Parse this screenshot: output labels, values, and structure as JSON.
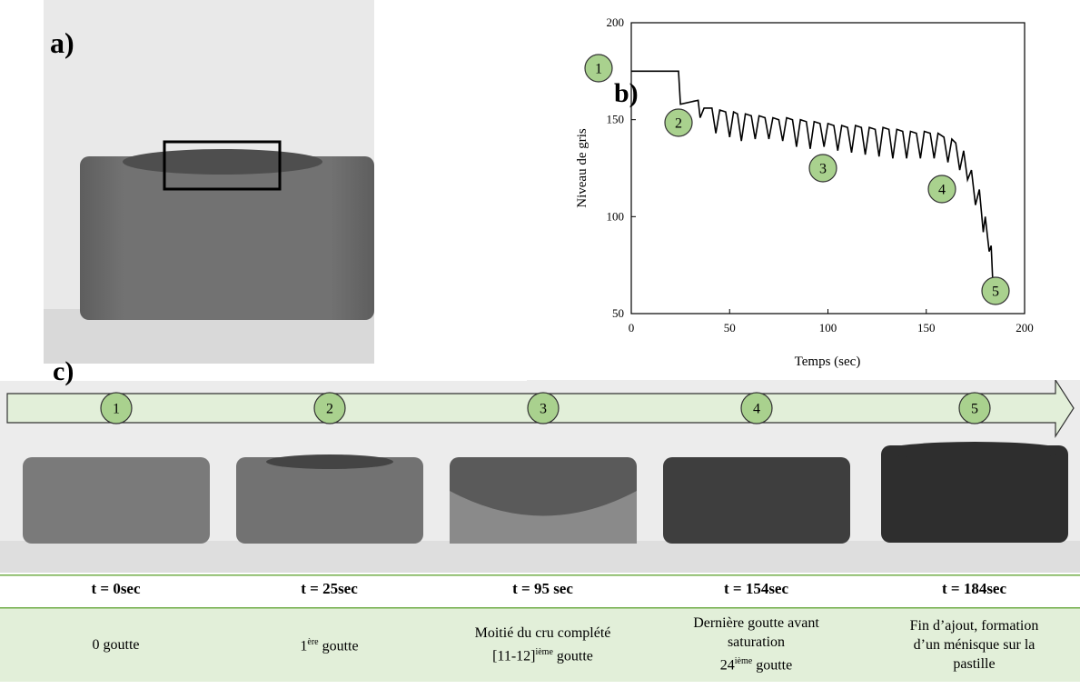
{
  "panels": {
    "a": "a)",
    "b": "b)",
    "c": "c)"
  },
  "chart_data": {
    "type": "line",
    "x_label": "Temps (sec)",
    "y_label": "Niveau de gris",
    "color": "#000000",
    "x": [
      0,
      24,
      25,
      34,
      35,
      37,
      41,
      43,
      45,
      48,
      50,
      52,
      54,
      56,
      58,
      61,
      63,
      65,
      68,
      70,
      72,
      75,
      77,
      79,
      82,
      84,
      86,
      89,
      91,
      93,
      96,
      98,
      100,
      103,
      105,
      107,
      110,
      112,
      114,
      117,
      119,
      121,
      124,
      126,
      128,
      131,
      133,
      135,
      138,
      140,
      142,
      145,
      147,
      149,
      152,
      154,
      156,
      159,
      161,
      163,
      165,
      167,
      169,
      171,
      173,
      175,
      177,
      179,
      180,
      182,
      183,
      184
    ],
    "values": [
      175,
      175,
      158,
      160,
      151,
      156,
      156,
      143,
      155,
      154,
      141,
      154,
      153,
      139,
      153,
      152,
      140,
      152,
      151,
      140,
      151,
      150,
      139,
      151,
      150,
      136,
      150,
      149,
      135,
      149,
      148,
      136,
      148,
      147,
      134,
      147,
      146,
      133,
      147,
      146,
      132,
      146,
      145,
      131,
      146,
      145,
      130,
      145,
      144,
      130,
      144,
      143,
      130,
      144,
      143,
      130,
      143,
      141,
      128,
      140,
      138,
      124,
      134,
      119,
      124,
      106,
      114,
      92,
      100,
      82,
      85,
      62
    ],
    "xlim": [
      0,
      200
    ],
    "ylim": [
      50,
      200
    ],
    "xticks": [
      0,
      50,
      100,
      150,
      200
    ],
    "yticks": [
      50,
      100,
      150,
      200
    ],
    "annotations": [
      "1",
      "2",
      "3",
      "4",
      "5"
    ]
  },
  "timeline": {
    "steps": [
      {
        "number": "1",
        "time": "t = 0sec",
        "desc": [
          "0 goutte"
        ]
      },
      {
        "number": "2",
        "time": "t = 25sec",
        "desc": [
          {
            "pre": "1",
            "sup": "ère",
            "post": " goutte"
          }
        ]
      },
      {
        "number": "3",
        "time": "t = 95 sec",
        "desc": [
          "Moitié du cru complété",
          {
            "pre": "[11-12]",
            "sup": "ième",
            "post": " goutte"
          }
        ]
      },
      {
        "number": "4",
        "time": "t = 154sec",
        "desc": [
          "Dernière goutte avant",
          "saturation",
          {
            "pre": "24",
            "sup": "ième",
            "post": " goutte"
          }
        ]
      },
      {
        "number": "5",
        "time": "t = 184sec",
        "desc": [
          "Fin d’ajout, formation",
          "d’un ménisque sur la",
          "pastille"
        ]
      }
    ]
  }
}
